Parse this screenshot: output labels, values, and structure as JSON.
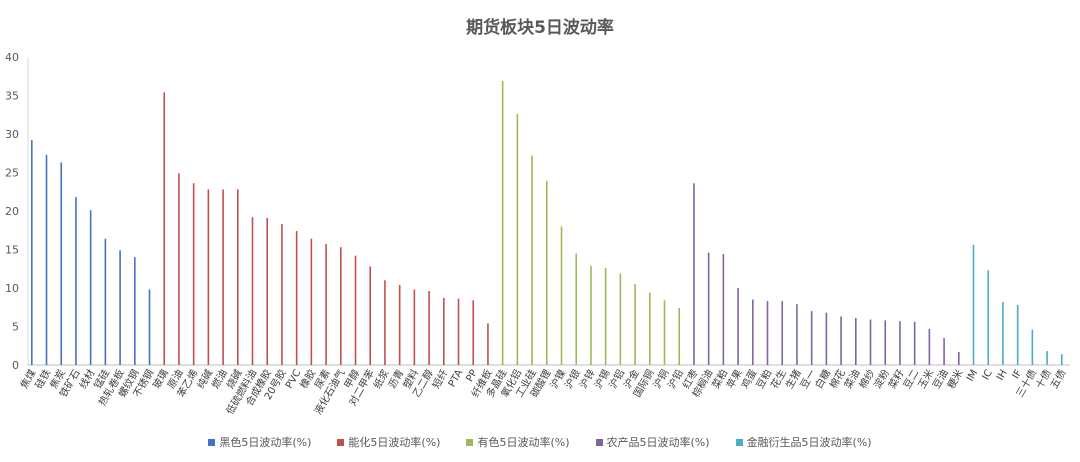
{
  "chart_data": {
    "type": "bar",
    "title": "期货板块5日波动率",
    "xlabel": "",
    "ylabel": "",
    "ylim": [
      0,
      40
    ],
    "yticks": [
      0,
      5,
      10,
      15,
      20,
      25,
      30,
      35,
      40
    ],
    "grid": false,
    "legend_position": "bottom",
    "series": [
      {
        "name": "黑色5日波动率(%)",
        "color": "#4472c4",
        "categories": [
          "焦煤",
          "硅铁",
          "焦炭",
          "铁矿石",
          "线材",
          "锰硅",
          "热轧卷板",
          "螺纹钢",
          "不锈钢"
        ],
        "values": [
          29.2,
          27.3,
          26.3,
          21.8,
          20.1,
          16.4,
          14.9,
          14.0,
          9.8
        ]
      },
      {
        "name": "能化5日波动率(%)",
        "color": "#c0504d",
        "categories": [
          "玻璃",
          "原油",
          "苯乙烯",
          "纯碱",
          "燃油",
          "烧碱",
          "低硫燃料油",
          "合成橡胶",
          "20号胶",
          "PVC",
          "橡胶",
          "尿素",
          "液化石油气",
          "甲醇",
          "对二甲苯",
          "纸浆",
          "沥青",
          "塑料",
          "乙二醇",
          "短纤",
          "PTA",
          "PP",
          "纤维板"
        ],
        "values": [
          35.4,
          24.9,
          23.6,
          22.8,
          22.8,
          22.8,
          19.2,
          19.1,
          18.3,
          17.4,
          16.4,
          15.7,
          15.3,
          14.2,
          12.8,
          11.0,
          10.4,
          9.8,
          9.6,
          8.7,
          8.6,
          8.4,
          5.4
        ]
      },
      {
        "name": "有色5日波动率(%)",
        "color": "#9bbb59",
        "categories": [
          "多晶硅",
          "氧化铝",
          "工业硅",
          "碳酸锂",
          "沪镍",
          "沪银",
          "沪锌",
          "沪锡",
          "沪铝",
          "沪金",
          "国际铜",
          "沪铜",
          "沪铅"
        ],
        "values": [
          36.9,
          32.6,
          27.2,
          23.9,
          18.0,
          14.5,
          12.9,
          12.6,
          11.9,
          10.5,
          9.4,
          8.4,
          7.4
        ]
      },
      {
        "name": "农产品5日波动率(%)",
        "color": "#8064a2",
        "categories": [
          "红枣",
          "棕榈油",
          "菜粕",
          "苹果",
          "鸡蛋",
          "豆粕",
          "花生",
          "生猪",
          "豆一",
          "白糖",
          "棉花",
          "菜油",
          "棉纱",
          "淀粉",
          "菜籽",
          "豆二",
          "玉米",
          "豆油",
          "粳米"
        ],
        "values": [
          23.6,
          14.6,
          14.4,
          10.0,
          8.5,
          8.3,
          8.3,
          7.9,
          7.0,
          6.8,
          6.3,
          6.1,
          5.9,
          5.8,
          5.7,
          5.6,
          4.7,
          3.5,
          1.7
        ]
      },
      {
        "name": "金融衍生品5日波动率(%)",
        "color": "#4bacc6",
        "categories": [
          "IM",
          "IC",
          "IH",
          "IF",
          "三十债",
          "十债",
          "五债"
        ],
        "values": [
          15.6,
          12.3,
          8.2,
          7.8,
          4.6,
          1.8,
          1.4
        ]
      }
    ]
  }
}
